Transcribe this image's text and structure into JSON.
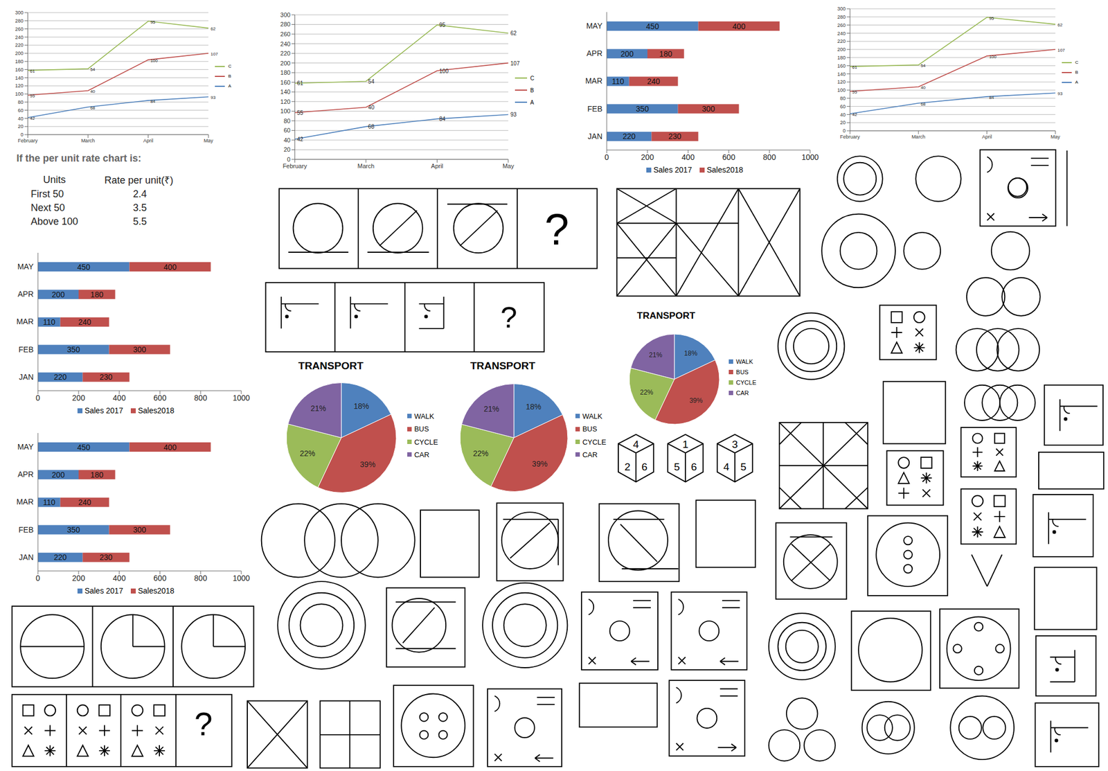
{
  "chart_data": [
    {
      "type": "line",
      "categories": [
        "February",
        "March",
        "April",
        "May"
      ],
      "series": [
        {
          "name": "A",
          "color": "#4a7ebb",
          "values": [
            42,
            68,
            84,
            93
          ]
        },
        {
          "name": "B",
          "color": "#be4b48",
          "values": [
            55,
            40,
            100,
            107
          ]
        },
        {
          "name": "C",
          "color": "#98b954",
          "values": [
            61,
            54,
            95,
            62
          ]
        }
      ],
      "stacked": true,
      "data_labels": true,
      "ylim": [
        0,
        300
      ],
      "yticks": [
        0,
        20,
        40,
        60,
        80,
        100,
        120,
        140,
        160,
        180,
        200,
        220,
        240,
        260,
        280,
        300
      ],
      "grid": true,
      "legend": "right"
    },
    {
      "type": "line",
      "categories": [
        "February",
        "March",
        "April",
        "May"
      ],
      "series": [
        {
          "name": "A",
          "color": "#4a7ebb",
          "values": [
            42,
            68,
            84,
            93
          ]
        },
        {
          "name": "B",
          "color": "#be4b48",
          "values": [
            55,
            40,
            100,
            107
          ]
        },
        {
          "name": "C",
          "color": "#98b954",
          "values": [
            61,
            54,
            95,
            62
          ]
        }
      ],
      "stacked": true,
      "data_labels": true,
      "ylim": [
        0,
        300
      ],
      "yticks": [
        0,
        20,
        40,
        60,
        80,
        100,
        120,
        140,
        160,
        180,
        200,
        220,
        240,
        260,
        280,
        300
      ],
      "grid": true,
      "legend": "right"
    },
    {
      "type": "line",
      "categories": [
        "February",
        "March",
        "April",
        "May"
      ],
      "series": [
        {
          "name": "A",
          "color": "#4a7ebb",
          "values": [
            42,
            68,
            84,
            93
          ]
        },
        {
          "name": "B",
          "color": "#be4b48",
          "values": [
            55,
            40,
            100,
            107
          ]
        },
        {
          "name": "C",
          "color": "#98b954",
          "values": [
            61,
            54,
            95,
            62
          ]
        }
      ],
      "stacked": true,
      "data_labels": true,
      "ylim": [
        0,
        300
      ],
      "yticks": [
        0,
        20,
        40,
        60,
        80,
        100,
        120,
        140,
        160,
        180,
        200,
        220,
        240,
        260,
        280,
        300
      ],
      "grid": true,
      "legend": "right"
    },
    {
      "type": "bar",
      "orientation": "horizontal",
      "stacked": true,
      "categories": [
        "MAY",
        "APR",
        "MAR",
        "FEB",
        "JAN"
      ],
      "series": [
        {
          "name": "Sales 2017",
          "color": "#4f81bd",
          "values": [
            450,
            200,
            110,
            350,
            220
          ]
        },
        {
          "name": "Sales2018",
          "color": "#c0504d",
          "values": [
            400,
            180,
            240,
            300,
            230
          ]
        }
      ],
      "xlim": [
        0,
        1000
      ],
      "xticks": [
        0,
        200,
        400,
        600,
        800,
        1000
      ],
      "data_labels": true,
      "legend": "bottom"
    },
    {
      "type": "bar",
      "orientation": "horizontal",
      "stacked": true,
      "categories": [
        "MAY",
        "APR",
        "MAR",
        "FEB",
        "JAN"
      ],
      "series": [
        {
          "name": "Sales 2017",
          "color": "#4f81bd",
          "values": [
            450,
            200,
            110,
            350,
            220
          ]
        },
        {
          "name": "Sales2018",
          "color": "#c0504d",
          "values": [
            400,
            180,
            240,
            300,
            230
          ]
        }
      ],
      "xlim": [
        0,
        1000
      ],
      "xticks": [
        0,
        200,
        400,
        600,
        800,
        1000
      ],
      "data_labels": true,
      "legend": "bottom"
    },
    {
      "type": "bar",
      "orientation": "horizontal",
      "stacked": true,
      "categories": [
        "MAY",
        "APR",
        "MAR",
        "FEB",
        "JAN"
      ],
      "series": [
        {
          "name": "Sales 2017",
          "color": "#4f81bd",
          "values": [
            450,
            200,
            110,
            350,
            220
          ]
        },
        {
          "name": "Sales2018",
          "color": "#c0504d",
          "values": [
            400,
            180,
            240,
            300,
            230
          ]
        }
      ],
      "xlim": [
        0,
        1000
      ],
      "xticks": [
        0,
        200,
        400,
        600,
        800,
        1000
      ],
      "data_labels": true,
      "legend": "bottom"
    },
    {
      "type": "pie",
      "title": "TRANSPORT",
      "categories": [
        "WALK",
        "BUS",
        "CYCLE",
        "CAR"
      ],
      "values": [
        18,
        39,
        22,
        21
      ],
      "value_labels": [
        "18%",
        "39%",
        "22%",
        "21%"
      ],
      "colors": [
        "#4f81bd",
        "#c0504d",
        "#9bbb59",
        "#8064a2"
      ],
      "data_labels": true,
      "legend": "right"
    },
    {
      "type": "pie",
      "title": "TRANSPORT",
      "categories": [
        "WALK",
        "BUS",
        "CYCLE",
        "CAR"
      ],
      "values": [
        18,
        39,
        22,
        21
      ],
      "value_labels": [
        "18%",
        "39%",
        "22%",
        "21%"
      ],
      "colors": [
        "#4f81bd",
        "#c0504d",
        "#9bbb59",
        "#8064a2"
      ],
      "data_labels": true,
      "legend": "right"
    },
    {
      "type": "pie",
      "title": "TRANSPORT",
      "categories": [
        "WALK",
        "BUS",
        "CYCLE",
        "CAR"
      ],
      "values": [
        18,
        39,
        22,
        21
      ],
      "value_labels": [
        "18%",
        "39%",
        "22%",
        "21%"
      ],
      "colors": [
        "#4f81bd",
        "#c0504d",
        "#9bbb59",
        "#8064a2"
      ],
      "data_labels": true,
      "legend": "right"
    }
  ],
  "table": {
    "title": "If the per unit rate chart is:",
    "header": [
      "Units",
      "Rate per unit(₹)"
    ],
    "rows": [
      [
        "First 50",
        "2.4"
      ],
      [
        "Next 50",
        "3.5"
      ],
      [
        "Above 100",
        "5.5"
      ]
    ]
  },
  "figures": {
    "question_marks": [
      "?",
      "?",
      "?"
    ],
    "dice": [
      [
        4,
        2,
        6
      ],
      [
        1,
        5,
        6
      ],
      [
        3,
        4,
        5
      ]
    ]
  }
}
